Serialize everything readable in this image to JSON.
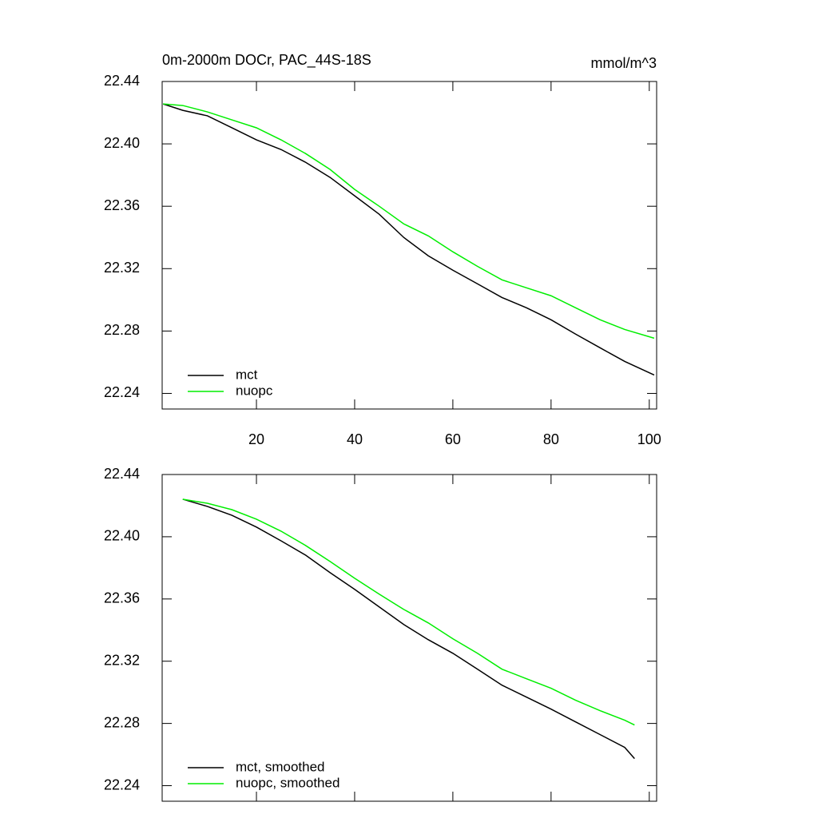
{
  "chart_data": [
    {
      "type": "line",
      "title": "0m-2000m DOCr, PAC_44S-18S",
      "units": "mmol/m^3",
      "x": [
        1,
        5,
        10,
        15,
        20,
        25,
        30,
        35,
        40,
        45,
        50,
        55,
        60,
        65,
        70,
        75,
        80,
        85,
        90,
        95,
        101
      ],
      "series": [
        {
          "name": "mct",
          "color": "#000000",
          "values": [
            22.4256,
            22.4215,
            22.418,
            22.4103,
            22.4026,
            22.3964,
            22.3882,
            22.3785,
            22.3667,
            22.3549,
            22.34,
            22.3282,
            22.319,
            22.3103,
            22.3015,
            22.2949,
            22.2872,
            22.278,
            22.2692,
            22.2605,
            22.2518
          ]
        },
        {
          "name": "nuopc",
          "color": "#00ee00",
          "values": [
            22.4256,
            22.4246,
            22.4205,
            22.4154,
            22.4103,
            22.4026,
            22.3938,
            22.3836,
            22.3708,
            22.36,
            22.3487,
            22.341,
            22.3308,
            22.3215,
            22.3128,
            22.3077,
            22.3026,
            22.2949,
            22.2872,
            22.281,
            22.2754
          ]
        }
      ],
      "xlim": [
        0.8,
        101.5
      ],
      "xticks": [
        20,
        40,
        60,
        80,
        100
      ],
      "xtick_labels": true,
      "ylim": [
        22.23,
        22.44
      ],
      "yticks": [
        22.24,
        22.28,
        22.32,
        22.36,
        {
          "value": 22.4,
          "label": "22.40"
        },
        22.44
      ],
      "legend": "lower left",
      "grid": false
    },
    {
      "type": "line",
      "x": [
        5,
        10,
        15,
        20,
        25,
        30,
        35,
        40,
        45,
        50,
        55,
        60,
        65,
        70,
        75,
        80,
        85,
        90,
        95,
        97
      ],
      "series": [
        {
          "name": "mct, smoothed",
          "color": "#000000",
          "values": [
            22.4241,
            22.4195,
            22.4138,
            22.4062,
            22.3974,
            22.3882,
            22.3769,
            22.3662,
            22.3549,
            22.3436,
            22.3338,
            22.3251,
            22.3149,
            22.3046,
            22.2969,
            22.2892,
            22.281,
            22.2728,
            22.2646,
            22.2574
          ]
        },
        {
          "name": "nuopc, smoothed",
          "color": "#00ee00",
          "values": [
            22.4241,
            22.4215,
            22.4174,
            22.4113,
            22.4036,
            22.3944,
            22.3841,
            22.3733,
            22.3631,
            22.3533,
            22.3446,
            22.3344,
            22.3251,
            22.3149,
            22.3087,
            22.3026,
            22.2949,
            22.2882,
            22.2821,
            22.279
          ]
        }
      ],
      "xlim": [
        0.8,
        101.5
      ],
      "xticks": [
        20,
        40,
        60,
        80,
        100
      ],
      "xtick_labels": false,
      "ylim": [
        22.23,
        22.44
      ],
      "yticks": [
        22.24,
        22.28,
        22.32,
        22.36,
        {
          "value": 22.4,
          "label": "22.40"
        },
        22.44
      ],
      "legend": "lower left",
      "grid": false
    }
  ]
}
